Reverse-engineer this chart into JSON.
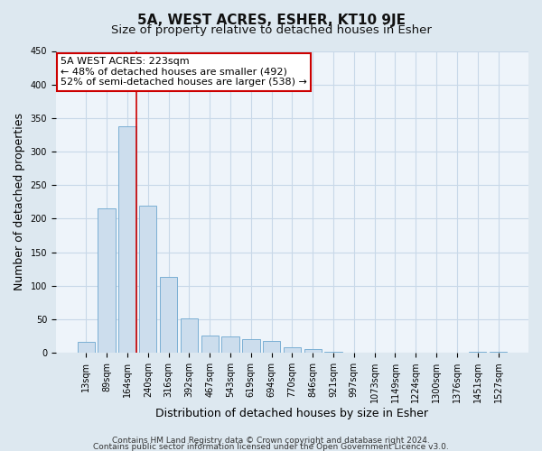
{
  "title": "5A, WEST ACRES, ESHER, KT10 9JE",
  "subtitle": "Size of property relative to detached houses in Esher",
  "xlabel": "Distribution of detached houses by size in Esher",
  "ylabel": "Number of detached properties",
  "bar_labels": [
    "13sqm",
    "89sqm",
    "164sqm",
    "240sqm",
    "316sqm",
    "392sqm",
    "467sqm",
    "543sqm",
    "619sqm",
    "694sqm",
    "770sqm",
    "846sqm",
    "921sqm",
    "997sqm",
    "1073sqm",
    "1149sqm",
    "1224sqm",
    "1300sqm",
    "1376sqm",
    "1451sqm",
    "1527sqm"
  ],
  "bar_heights": [
    16,
    215,
    338,
    220,
    113,
    51,
    26,
    25,
    20,
    17,
    8,
    5,
    2,
    0,
    0,
    0,
    0,
    0,
    0,
    1,
    1
  ],
  "bar_color": "#ccdded",
  "bar_edge_color": "#7aafd4",
  "vline_color": "#cc0000",
  "vline_x": 2.43,
  "ylim": [
    0,
    450
  ],
  "yticks": [
    0,
    50,
    100,
    150,
    200,
    250,
    300,
    350,
    400,
    450
  ],
  "annotation_line1": "5A WEST ACRES: 223sqm",
  "annotation_line2": "← 48% of detached houses are smaller (492)",
  "annotation_line3": "52% of semi-detached houses are larger (538) →",
  "annotation_box_color": "#ffffff",
  "annotation_box_edge": "#cc0000",
  "footer1": "Contains HM Land Registry data © Crown copyright and database right 2024.",
  "footer2": "Contains public sector information licensed under the Open Government Licence v3.0.",
  "background_color": "#dde8f0",
  "plot_bg_color": "#eef4fa",
  "grid_color": "#c8d8e8",
  "title_fontsize": 11,
  "subtitle_fontsize": 9.5,
  "axis_label_fontsize": 9,
  "tick_fontsize": 7,
  "annotation_fontsize": 8,
  "footer_fontsize": 6.5
}
